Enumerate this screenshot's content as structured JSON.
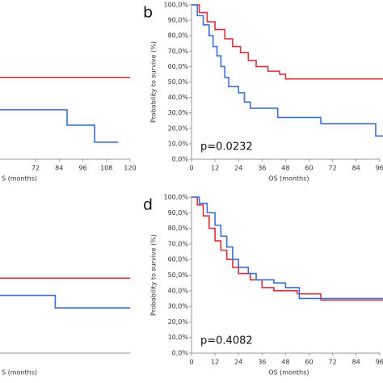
{
  "chart_data": [
    {
      "type": "line",
      "xlabel": "S (months)",
      "xlim": [
        0,
        120
      ],
      "xticks": [
        72,
        84,
        96,
        108,
        120
      ],
      "ylim": [
        0,
        100
      ],
      "series": [
        {
          "color": "#d9303a",
          "x": [
            0,
            120
          ],
          "values": [
            53,
            53
          ]
        },
        {
          "color": "#3a6fd8",
          "x": [
            0,
            88,
            88,
            102,
            102,
            114
          ],
          "values": [
            32,
            32,
            22,
            22,
            11,
            11
          ]
        }
      ]
    },
    {
      "type": "line",
      "panel_label": "b",
      "annotation": "p=0.0232",
      "ylabel": "Probability to survive (%)",
      "xlabel": "OS (months)",
      "xlim": [
        0,
        96
      ],
      "xticks": [
        0,
        12,
        24,
        36,
        48,
        60,
        72,
        84,
        96
      ],
      "ylim": [
        0,
        100
      ],
      "yticks": [
        {
          "value": 0,
          "label": "0,0%"
        },
        {
          "value": 10,
          "label": "10,0%"
        },
        {
          "value": 20,
          "label": "20,0%"
        },
        {
          "value": 30,
          "label": "30,0%"
        },
        {
          "value": 40,
          "label": "40,0%"
        },
        {
          "value": 50,
          "label": "50,0%"
        },
        {
          "value": 60,
          "label": "60,0%"
        },
        {
          "value": 70,
          "label": "70,0%"
        },
        {
          "value": 80,
          "label": "80,0%"
        },
        {
          "value": 90,
          "label": "90,0%"
        },
        {
          "value": 100,
          "label": "100,0%"
        }
      ],
      "series": [
        {
          "color": "#d9303a",
          "x": [
            0,
            4,
            4,
            8,
            8,
            12,
            12,
            17,
            17,
            21,
            21,
            25,
            25,
            29,
            29,
            33,
            33,
            39,
            39,
            45,
            45,
            48,
            48,
            100
          ],
          "values": [
            100,
            100,
            95,
            95,
            89,
            89,
            84,
            84,
            78,
            78,
            73,
            73,
            69,
            69,
            64,
            64,
            60,
            60,
            57,
            57,
            55,
            55,
            52,
            52
          ]
        },
        {
          "color": "#3a6fd8",
          "x": [
            0,
            3,
            3,
            6,
            6,
            9,
            9,
            11,
            11,
            13,
            13,
            15,
            15,
            17,
            17,
            19,
            19,
            24,
            24,
            27,
            27,
            30,
            30,
            44,
            44,
            66,
            66,
            94,
            94,
            100
          ],
          "values": [
            100,
            100,
            93,
            93,
            87,
            87,
            80,
            80,
            73,
            73,
            67,
            67,
            60,
            60,
            53,
            53,
            47,
            47,
            43,
            43,
            37,
            37,
            33,
            33,
            27,
            27,
            23,
            23,
            15,
            15
          ]
        }
      ]
    },
    {
      "type": "line",
      "xlabel": "S (months)",
      "xlim": [
        0,
        120
      ],
      "ylim": [
        0,
        100
      ],
      "series": [
        {
          "color": "#d9303a",
          "x": [
            0,
            120
          ],
          "values": [
            48,
            48
          ]
        },
        {
          "color": "#3a6fd8",
          "x": [
            0,
            82,
            82,
            120
          ],
          "values": [
            37,
            37,
            29,
            29
          ]
        }
      ]
    },
    {
      "type": "line",
      "panel_label": "d",
      "annotation": "p=0.4082",
      "ylabel": "Probability to survive (%)",
      "xlabel": "OS (months)",
      "xlim": [
        0,
        96
      ],
      "xticks": [
        0,
        12,
        24,
        36,
        48,
        60,
        72,
        84,
        96
      ],
      "ylim": [
        0,
        100
      ],
      "yticks": [
        {
          "value": 0,
          "label": "0,0%"
        },
        {
          "value": 10,
          "label": "10,0%"
        },
        {
          "value": 20,
          "label": "20,0%"
        },
        {
          "value": 30,
          "label": "30,0%"
        },
        {
          "value": 40,
          "label": "40,0%"
        },
        {
          "value": 50,
          "label": "50,0%"
        },
        {
          "value": 60,
          "label": "60,0%"
        },
        {
          "value": 70,
          "label": "70,0%"
        },
        {
          "value": 80,
          "label": "80,0%"
        },
        {
          "value": 90,
          "label": "90,0%"
        },
        {
          "value": 100,
          "label": "100,0%"
        }
      ],
      "series": [
        {
          "color": "#d9303a",
          "x": [
            0,
            3,
            3,
            6,
            6,
            9,
            9,
            12,
            12,
            15,
            15,
            18,
            18,
            21,
            21,
            24,
            24,
            30,
            30,
            36,
            36,
            42,
            42,
            54,
            54,
            66,
            66,
            100
          ],
          "values": [
            100,
            100,
            95,
            95,
            88,
            88,
            80,
            80,
            72,
            72,
            66,
            66,
            60,
            60,
            55,
            55,
            51,
            51,
            47,
            47,
            42,
            42,
            40,
            40,
            38,
            38,
            34,
            34
          ]
        },
        {
          "color": "#3a6fd8",
          "x": [
            0,
            4,
            4,
            8,
            8,
            12,
            12,
            15,
            15,
            18,
            18,
            21,
            21,
            24,
            24,
            29,
            29,
            33,
            33,
            42,
            42,
            48,
            48,
            55,
            55,
            100
          ],
          "values": [
            100,
            100,
            96,
            96,
            90,
            90,
            82,
            82,
            75,
            75,
            68,
            68,
            60,
            60,
            55,
            55,
            51,
            51,
            47,
            47,
            45,
            45,
            42,
            42,
            35,
            35
          ]
        }
      ]
    }
  ]
}
